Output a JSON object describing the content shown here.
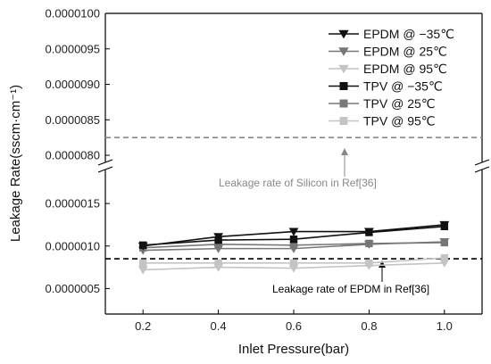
{
  "chart_data": {
    "type": "line",
    "xlabel": "Inlet Pressure(bar)",
    "ylabel": "Leakage Rate(sscm·cm⁻¹)",
    "x": [
      0.2,
      0.4,
      0.6,
      0.8,
      1.0
    ],
    "x_ticks": [
      "0.2",
      "0.4",
      "0.6",
      "0.8",
      "1.0"
    ],
    "xlim": [
      0.1,
      1.1
    ],
    "axis_break": true,
    "lower_ylim": [
      2e-07,
      1.9e-06
    ],
    "lower_y_ticks": [
      {
        "value": 5e-07,
        "label": "0.0000005"
      },
      {
        "value": 1e-06,
        "label": "0.0000010"
      },
      {
        "value": 1.5e-06,
        "label": "0.0000015"
      }
    ],
    "upper_ylim": [
      7.9e-06,
      1e-05
    ],
    "upper_y_ticks": [
      {
        "value": 8e-06,
        "label": "0.0000080"
      },
      {
        "value": 8.5e-06,
        "label": "0.0000085"
      },
      {
        "value": 9e-06,
        "label": "0.0000090"
      },
      {
        "value": 9.5e-06,
        "label": "0.0000095"
      },
      {
        "value": 1e-05,
        "label": "0.0000100"
      }
    ],
    "grid": false,
    "legend_position": "top-right",
    "series": [
      {
        "name": "EPDM @ −35℃",
        "color": "#111111",
        "marker": "triangle-down",
        "values": [
          1e-06,
          1.11e-06,
          1.17e-06,
          1.17e-06,
          1.25e-06
        ]
      },
      {
        "name": "EPDM @ 25℃",
        "color": "#777777",
        "marker": "triangle-down",
        "values": [
          9.5e-07,
          9.7e-07,
          9.7e-07,
          1.02e-06,
          1.05e-06
        ]
      },
      {
        "name": "EPDM @ 95℃",
        "color": "#c4c4c4",
        "marker": "triangle-down",
        "values": [
          7.2e-07,
          7.5e-07,
          7.4e-07,
          7.7e-07,
          8e-07
        ]
      },
      {
        "name": "TPV @ −35℃",
        "color": "#111111",
        "marker": "square",
        "values": [
          1.01e-06,
          1.07e-06,
          1.08e-06,
          1.16e-06,
          1.23e-06
        ]
      },
      {
        "name": "TPV @ 25℃",
        "color": "#777777",
        "marker": "square",
        "values": [
          9.8e-07,
          1.02e-06,
          1.01e-06,
          1.03e-06,
          1.04e-06
        ]
      },
      {
        "name": "TPV @ 95℃",
        "color": "#c4c4c4",
        "marker": "square",
        "values": [
          8e-07,
          8e-07,
          8e-07,
          8e-07,
          8.6e-07
        ]
      }
    ],
    "reference_lines": [
      {
        "label": "Leakage rate of Silicon in Ref[36]",
        "value": 8.25e-06,
        "color": "#888888",
        "style": "dashed"
      },
      {
        "label": "Leakage rate of EPDM in Ref[36]",
        "value": 8.5e-07,
        "color": "#000000",
        "style": "dashed"
      }
    ]
  }
}
